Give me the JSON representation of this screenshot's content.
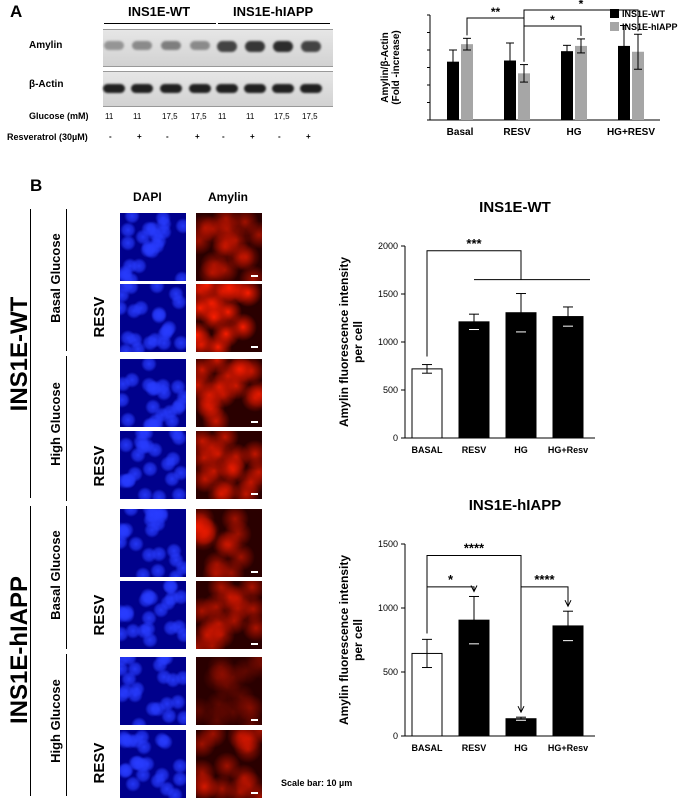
{
  "panel_a": {
    "letter": "A",
    "header_wt": "INS1E-WT",
    "header_hiapp": "INS1E-hIAPP",
    "row_amylin": "Amylin",
    "row_actin": "β-Actin",
    "glucose_label": "Glucose (mM)",
    "resv_label": "Resveratrol (30µM)",
    "glucose_values": [
      "11",
      "11",
      "17,5",
      "17,5",
      "11",
      "11",
      "17,5",
      "17,5"
    ],
    "resv_values": [
      "-",
      "+",
      "-",
      "+",
      "-",
      "+",
      "-",
      "+"
    ],
    "amylin_band_intensity": [
      0.45,
      0.5,
      0.55,
      0.5,
      0.8,
      0.85,
      0.9,
      0.8
    ],
    "actin_band_intensity": [
      0.95,
      0.95,
      0.95,
      0.95,
      0.95,
      0.95,
      0.95,
      0.95
    ]
  },
  "panel_b": {
    "letter": "B",
    "col_dapi": "DAPI",
    "col_amylin": "Amylin",
    "group_wt": "INS1E-WT",
    "group_hiapp": "INS1E-hIAPP",
    "basal_glucose": "Basal Glucose",
    "high_glucose": "High Glucose",
    "resv": "RESV",
    "scale_bar": "Scale bar: 10 µm"
  },
  "colors": {
    "wt": "#000000",
    "hiapp": "#a6a6a6",
    "dapi": "#0010ff",
    "amylin": "#ff1a00"
  },
  "chart_data": [
    {
      "type": "bar",
      "id": "western-quant",
      "title": "",
      "ylabel": "Amylin/β-Actin (Fold -increase)",
      "categories": [
        "Basal",
        "RESV",
        "HG",
        "HG+RESV"
      ],
      "series": [
        {
          "name": "INS1E-WT",
          "values": [
            1.0,
            1.02,
            1.18,
            1.27
          ],
          "err": [
            0.2,
            0.3,
            0.1,
            0.35
          ]
        },
        {
          "name": "INS1E-hIAPP",
          "values": [
            1.3,
            0.8,
            1.27,
            1.17
          ],
          "err": [
            0.1,
            0.15,
            0.12,
            0.3
          ]
        }
      ],
      "ylim": [
        0,
        1.8
      ],
      "legend": "top-right",
      "significance": [
        "**",
        "*",
        "*"
      ]
    },
    {
      "type": "bar",
      "id": "wt-fluorescence",
      "title": "INS1E-WT",
      "ylabel": "Amylin fluorescence intensity per cell",
      "categories": [
        "BASAL",
        "RESV",
        "HG",
        "HG+Resv"
      ],
      "values": [
        720,
        1210,
        1305,
        1265
      ],
      "err": [
        45,
        80,
        200,
        100
      ],
      "fills": [
        "#ffffff",
        "#000000",
        "#000000",
        "#000000"
      ],
      "ylim": [
        0,
        2000
      ],
      "yticks": [
        0,
        500,
        1000,
        1500,
        2000
      ],
      "significance": [
        "***"
      ]
    },
    {
      "type": "bar",
      "id": "hiapp-fluorescence",
      "title": "INS1E-hIAPP",
      "ylabel": "Amylin fluorescence intensity per cell",
      "categories": [
        "BASAL",
        "RESV",
        "HG",
        "HG+Resv"
      ],
      "values": [
        645,
        905,
        135,
        860
      ],
      "err": [
        110,
        185,
        12,
        115
      ],
      "fills": [
        "#ffffff",
        "#000000",
        "#000000",
        "#000000"
      ],
      "ylim": [
        0,
        1500
      ],
      "yticks": [
        0,
        500,
        1000,
        1500
      ],
      "significance": [
        "*",
        "****",
        "****"
      ]
    }
  ]
}
